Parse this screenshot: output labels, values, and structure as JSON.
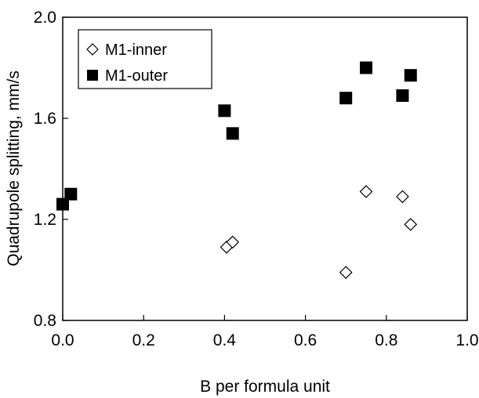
{
  "chart_data": {
    "type": "scatter",
    "xlabel": "B per formula unit",
    "ylabel": "Quadrupole splitting, mm/s",
    "xlim": [
      0.0,
      1.0
    ],
    "ylim": [
      0.8,
      2.0
    ],
    "x_ticks": [
      "0.0",
      "0.2",
      "0.4",
      "0.6",
      "0.8",
      "1.0"
    ],
    "y_ticks": [
      "0.8",
      "1.2",
      "1.6",
      "2.0"
    ],
    "grid": false,
    "legend_position": "top-left",
    "series": [
      {
        "name": "M1-inner",
        "marker": "open-diamond",
        "color": "#000000",
        "points": [
          {
            "x": 0.405,
            "y": 1.09
          },
          {
            "x": 0.42,
            "y": 1.11
          },
          {
            "x": 0.7,
            "y": 0.99
          },
          {
            "x": 0.75,
            "y": 1.31
          },
          {
            "x": 0.84,
            "y": 1.29
          },
          {
            "x": 0.86,
            "y": 1.18
          }
        ]
      },
      {
        "name": "M1-outer",
        "marker": "filled-square",
        "color": "#000000",
        "points": [
          {
            "x": 0.0,
            "y": 1.26
          },
          {
            "x": 0.02,
            "y": 1.3
          },
          {
            "x": 0.4,
            "y": 1.63
          },
          {
            "x": 0.42,
            "y": 1.54
          },
          {
            "x": 0.7,
            "y": 1.68
          },
          {
            "x": 0.75,
            "y": 1.8
          },
          {
            "x": 0.84,
            "y": 1.69
          },
          {
            "x": 0.86,
            "y": 1.77
          }
        ]
      }
    ]
  }
}
